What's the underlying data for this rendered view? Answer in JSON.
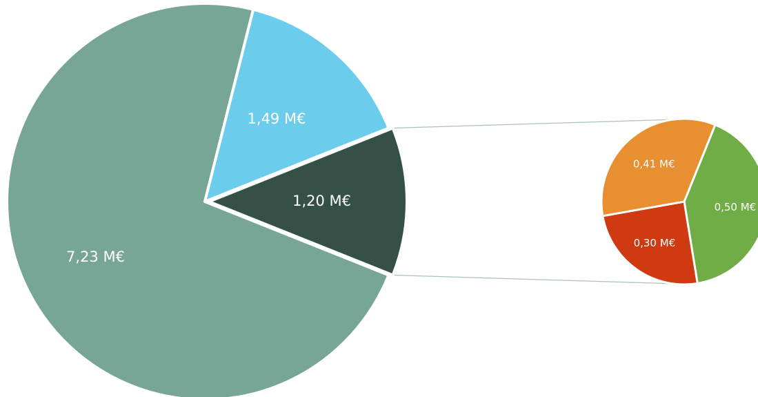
{
  "chart_data": {
    "type": "pie",
    "subtype": "pie-of-pie",
    "main": {
      "labels": [
        "7,23 M€",
        "1,49 M€",
        "1,20 M€"
      ],
      "values": [
        7.23,
        1.49,
        1.2
      ],
      "colors": [
        "#77a596",
        "#6bcdeb",
        "#355047"
      ],
      "exploded_slice_index": 2
    },
    "breakout": {
      "labels": [
        "0,50 M€",
        "0,30 M€",
        "0,41 M€"
      ],
      "values": [
        0.5,
        0.3,
        0.41
      ],
      "colors": [
        "#70ad47",
        "#d03a12",
        "#e88f31"
      ]
    },
    "connector_color": "#a9c2bd"
  }
}
